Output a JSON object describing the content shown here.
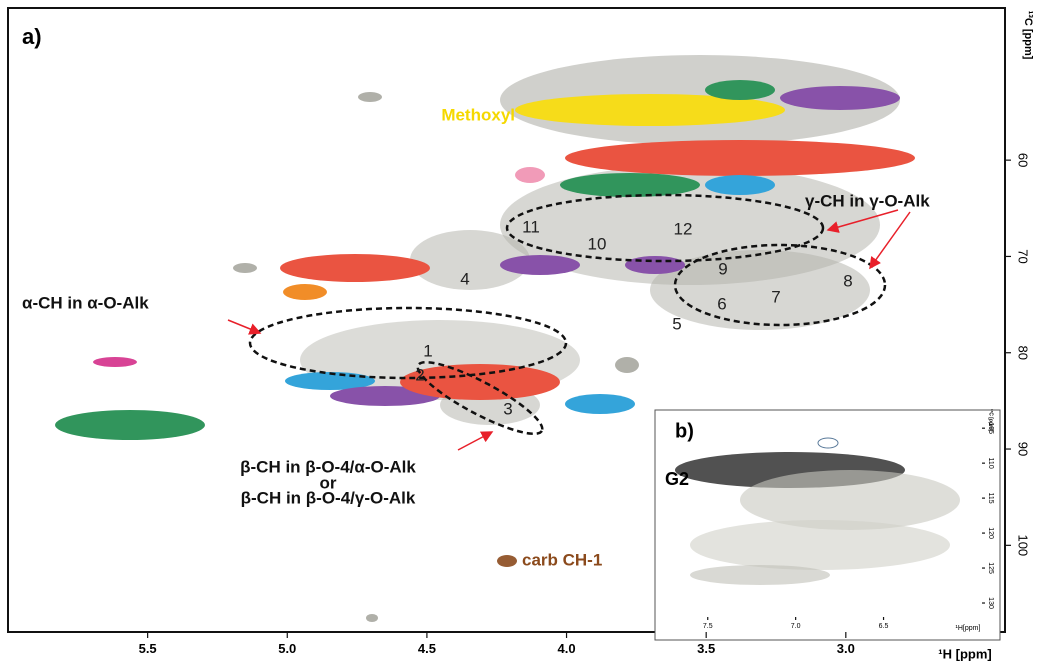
{
  "chart_data": [
    {
      "type": "contour",
      "panel_label": "a)",
      "x_label": "¹H [ppm]",
      "y_label": "¹³C [ppm]",
      "xlim": [
        6.0,
        2.43
      ],
      "ylim": [
        44.2,
        109
      ],
      "xticks": [
        5.5,
        {
          "value": 5,
          "label": "5.0"
        },
        4.5,
        {
          "value": 4,
          "label": "4.0"
        },
        3.5,
        {
          "value": 3,
          "label": "3.0"
        }
      ],
      "yticks": [
        60,
        70,
        80,
        90,
        100
      ],
      "annotations": [
        "Methoxyl",
        "γ-CH in γ-O-Alk",
        "α-CH in α-O-Alk",
        "β-CH in β-O-4/α-O-Alk",
        "or",
        "β-CH in β-O-4/γ-O-Alk",
        "carb CH-1",
        "1",
        "2",
        "3",
        "4",
        "5",
        "6",
        "7",
        "8",
        "9",
        "10",
        "11",
        "12"
      ]
    },
    {
      "type": "contour",
      "panel_label": "b)",
      "x_label": "¹H[ppm]",
      "y_label": "¹³C [ppm]",
      "xlim": [
        7.8,
        5.94
      ],
      "ylim": [
        102.4,
        132
      ],
      "xticks": [
        7.5,
        {
          "value": 7,
          "label": "7.0"
        },
        6.5
      ],
      "yticks": [
        105,
        110,
        115,
        120,
        125,
        130
      ],
      "annotations": [
        "G2"
      ]
    }
  ]
}
